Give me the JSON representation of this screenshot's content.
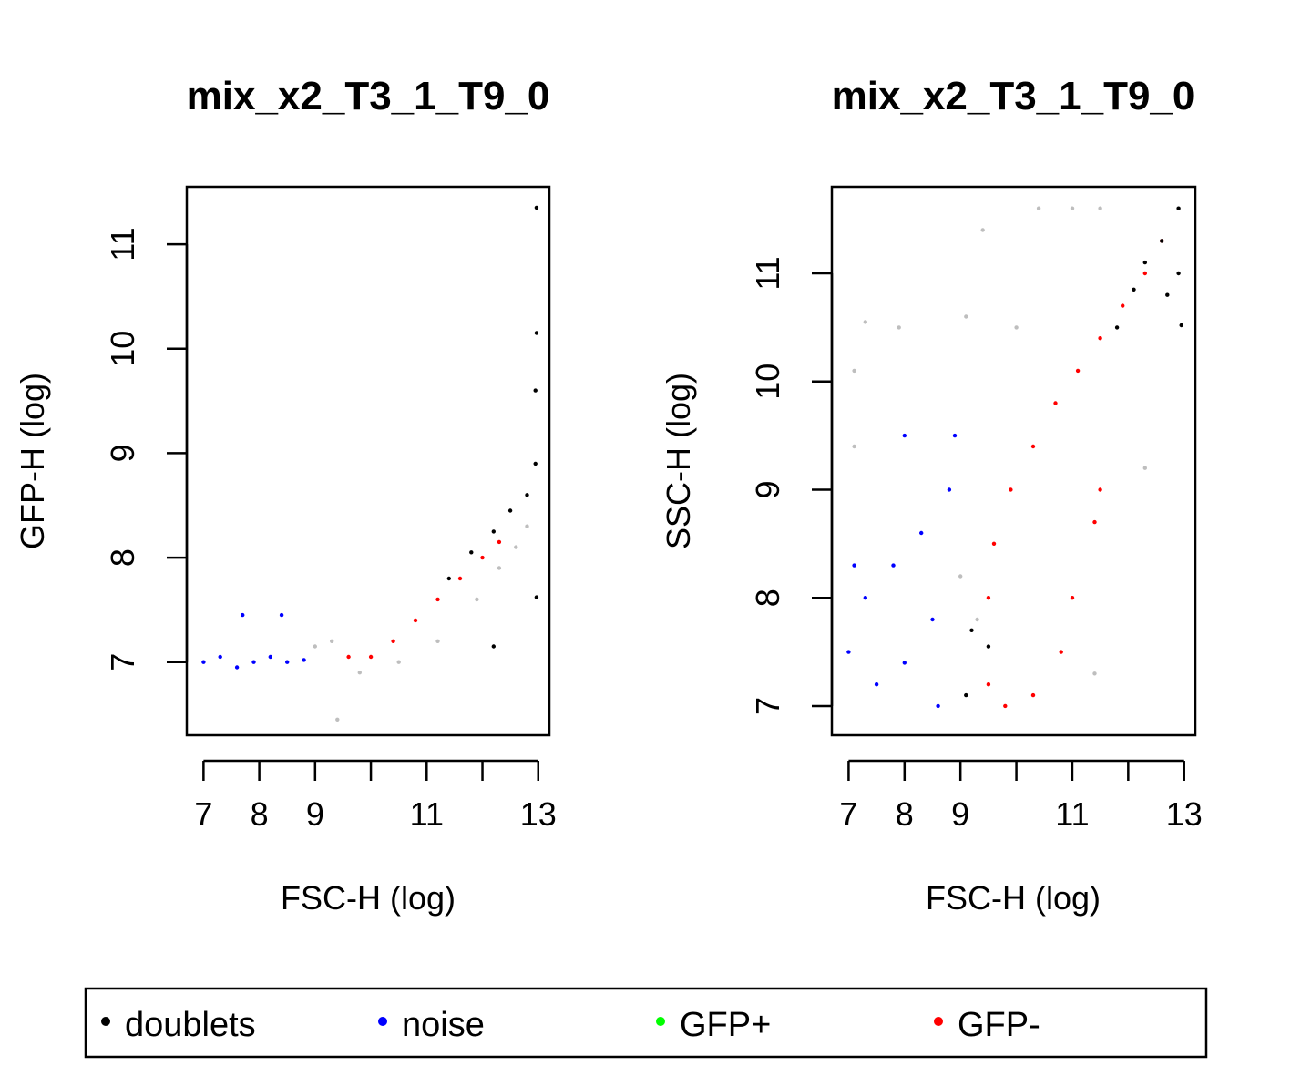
{
  "colors": {
    "doublets": "#000000",
    "noise": "#0000ff",
    "gfp_pos": "#00ff00",
    "gfp_neg": "#ff0000",
    "other": "#bebebe"
  },
  "legend": {
    "items": [
      {
        "label": "doublets",
        "color": "#000000"
      },
      {
        "label": "noise",
        "color": "#0000ff"
      },
      {
        "label": "GFP+",
        "color": "#00ff00"
      },
      {
        "label": "GFP-",
        "color": "#ff0000"
      }
    ]
  },
  "chart_data": [
    {
      "type": "scatter",
      "title": "mix_x2_T3_1_T9_0",
      "xlabel": "FSC-H (log)",
      "ylabel": "GFP-H (log)",
      "xlim": [
        6.7,
        13.2
      ],
      "ylim": [
        6.3,
        11.55
      ],
      "xticks": [
        7,
        8,
        9,
        10,
        11,
        12,
        13
      ],
      "xtick_labels": [
        "7",
        "8",
        "9",
        "",
        "11",
        "",
        "13"
      ],
      "yticks": [
        7,
        8,
        9,
        10,
        11
      ],
      "ytick_labels": [
        "7",
        "8",
        "9",
        "10",
        "11"
      ],
      "series": [
        {
          "name": "other",
          "color": "#bebebe",
          "points": [
            [
              9.3,
              7.2
            ],
            [
              9.8,
              6.9
            ],
            [
              10.5,
              7.0
            ],
            [
              11.2,
              7.2
            ],
            [
              11.9,
              7.6
            ],
            [
              12.3,
              7.9
            ],
            [
              12.6,
              8.1
            ],
            [
              12.8,
              8.3
            ],
            [
              9.4,
              6.45
            ],
            [
              9.0,
              7.15
            ]
          ]
        },
        {
          "name": "noise",
          "color": "#0000ff",
          "points": [
            [
              7.0,
              7.0
            ],
            [
              7.3,
              7.05
            ],
            [
              7.6,
              6.95
            ],
            [
              7.9,
              7.0
            ],
            [
              8.2,
              7.05
            ],
            [
              8.5,
              7.0
            ],
            [
              8.8,
              7.02
            ],
            [
              7.7,
              7.45
            ],
            [
              8.4,
              7.45
            ]
          ]
        },
        {
          "name": "GFP-",
          "color": "#ff0000",
          "points": [
            [
              9.6,
              7.05
            ],
            [
              10.0,
              7.05
            ],
            [
              10.4,
              7.2
            ],
            [
              10.8,
              7.4
            ],
            [
              11.2,
              7.6
            ],
            [
              11.6,
              7.8
            ],
            [
              12.0,
              8.0
            ],
            [
              12.3,
              8.15
            ]
          ]
        },
        {
          "name": "doublets",
          "color": "#000000",
          "points": [
            [
              11.4,
              7.8
            ],
            [
              11.8,
              8.05
            ],
            [
              12.2,
              8.25
            ],
            [
              12.5,
              8.45
            ],
            [
              12.8,
              8.6
            ],
            [
              12.95,
              8.9
            ],
            [
              12.95,
              9.6
            ],
            [
              12.97,
              10.15
            ],
            [
              12.97,
              11.35
            ],
            [
              12.97,
              7.62
            ],
            [
              12.2,
              7.15
            ]
          ]
        }
      ]
    },
    {
      "type": "scatter",
      "title": "mix_x2_T3_1_T9_0",
      "xlabel": "FSC-H (log)",
      "ylabel": "SSC-H (log)",
      "xlim": [
        6.7,
        13.2
      ],
      "ylim": [
        6.73,
        11.8
      ],
      "xticks": [
        7,
        8,
        9,
        10,
        11,
        12,
        13
      ],
      "xtick_labels": [
        "7",
        "8",
        "9",
        "",
        "11",
        "",
        "13"
      ],
      "yticks": [
        7,
        8,
        9,
        10,
        11
      ],
      "ytick_labels": [
        "7",
        "8",
        "9",
        "10",
        "11"
      ],
      "series": [
        {
          "name": "other",
          "color": "#bebebe",
          "points": [
            [
              7.1,
              10.1
            ],
            [
              7.3,
              10.55
            ],
            [
              7.9,
              10.5
            ],
            [
              9.1,
              10.6
            ],
            [
              9.4,
              11.4
            ],
            [
              10.4,
              11.6
            ],
            [
              11.0,
              11.6
            ],
            [
              11.5,
              11.6
            ],
            [
              12.3,
              9.2
            ],
            [
              9.0,
              8.2
            ],
            [
              9.3,
              7.8
            ],
            [
              11.4,
              7.3
            ],
            [
              10.0,
              10.5
            ],
            [
              7.1,
              9.4
            ]
          ]
        },
        {
          "name": "noise",
          "color": "#0000ff",
          "points": [
            [
              7.0,
              7.5
            ],
            [
              7.5,
              7.2
            ],
            [
              8.0,
              7.4
            ],
            [
              8.5,
              7.8
            ],
            [
              7.3,
              8.0
            ],
            [
              7.8,
              8.3
            ],
            [
              8.3,
              8.6
            ],
            [
              8.8,
              9.0
            ],
            [
              8.0,
              9.5
            ],
            [
              8.9,
              9.5
            ],
            [
              7.1,
              8.3
            ],
            [
              8.6,
              7.0
            ]
          ]
        },
        {
          "name": "GFP-",
          "color": "#ff0000",
          "points": [
            [
              9.5,
              8.0
            ],
            [
              9.6,
              8.5
            ],
            [
              9.9,
              9.0
            ],
            [
              10.3,
              9.4
            ],
            [
              10.7,
              9.8
            ],
            [
              11.1,
              10.1
            ],
            [
              11.5,
              10.4
            ],
            [
              11.9,
              10.7
            ],
            [
              12.3,
              11.0
            ],
            [
              12.6,
              11.3
            ],
            [
              9.5,
              7.2
            ],
            [
              9.8,
              7.0
            ],
            [
              10.3,
              7.1
            ],
            [
              10.8,
              7.5
            ],
            [
              11.0,
              8.0
            ],
            [
              11.4,
              8.7
            ],
            [
              11.5,
              9.0
            ]
          ]
        },
        {
          "name": "doublets",
          "color": "#000000",
          "points": [
            [
              12.3,
              11.1
            ],
            [
              12.6,
              11.3
            ],
            [
              12.9,
              11.6
            ],
            [
              12.9,
              11.0
            ],
            [
              12.7,
              10.8
            ],
            [
              12.95,
              10.52
            ],
            [
              11.8,
              10.5
            ],
            [
              12.1,
              10.85
            ],
            [
              9.2,
              7.7
            ],
            [
              9.1,
              7.1
            ],
            [
              9.5,
              7.55
            ]
          ]
        }
      ]
    }
  ]
}
